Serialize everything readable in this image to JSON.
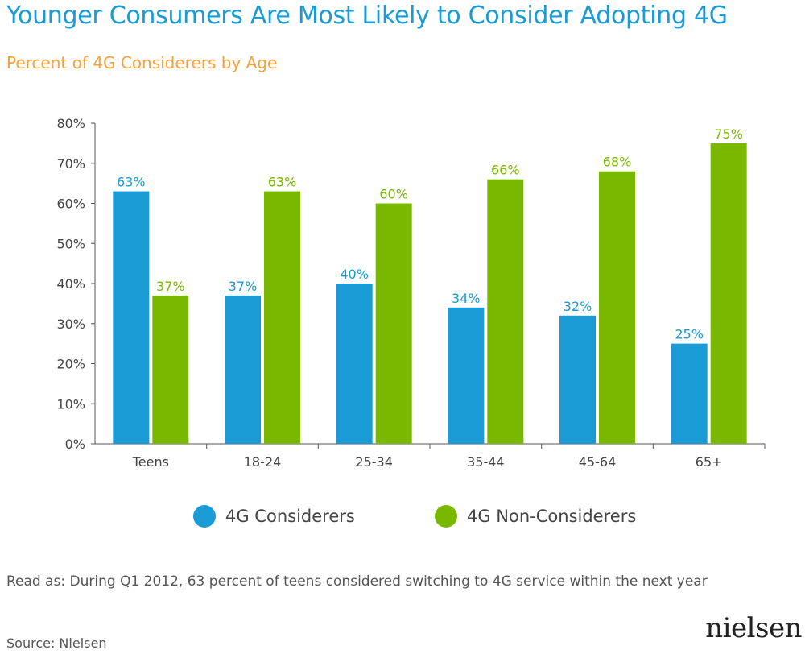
{
  "title": "Younger Consumers Are Most Likely to Consider Adopting 4G",
  "subtitle": "Percent of 4G Considerers by Age",
  "note": "Read as: During Q1 2012, 63 percent of teens considered switching to 4G service within the next year",
  "source": "Source: Nielsen",
  "logo_text": "nielsen",
  "colors": {
    "considerers": "#1a9bd6",
    "non_considerers": "#7ab800",
    "title": "#1a9bd6",
    "subtitle": "#f7a239"
  },
  "chart_data": {
    "type": "bar",
    "title": "Younger Consumers Are Most Likely to Consider Adopting 4G",
    "subtitle": "Percent of 4G Considerers by Age",
    "categories": [
      "Teens",
      "18-24",
      "25-34",
      "35-44",
      "45-64",
      "65+"
    ],
    "series": [
      {
        "name": "4G Considerers",
        "values": [
          63,
          37,
          40,
          34,
          32,
          25
        ],
        "labels": [
          "63%",
          "37%",
          "40%",
          "34%",
          "32%",
          "25%"
        ],
        "color": "#1a9bd6"
      },
      {
        "name": "4G Non-Considerers",
        "values": [
          37,
          63,
          60,
          66,
          68,
          75
        ],
        "labels": [
          "37%",
          "63%",
          "60%",
          "66%",
          "68%",
          "75%"
        ],
        "color": "#7ab800"
      }
    ],
    "yticks": [
      "0%",
      "10%",
      "20%",
      "30%",
      "40%",
      "50%",
      "60%",
      "70%",
      "80%"
    ],
    "ylim": [
      0,
      80
    ],
    "grid": false,
    "legend_position": "bottom"
  }
}
